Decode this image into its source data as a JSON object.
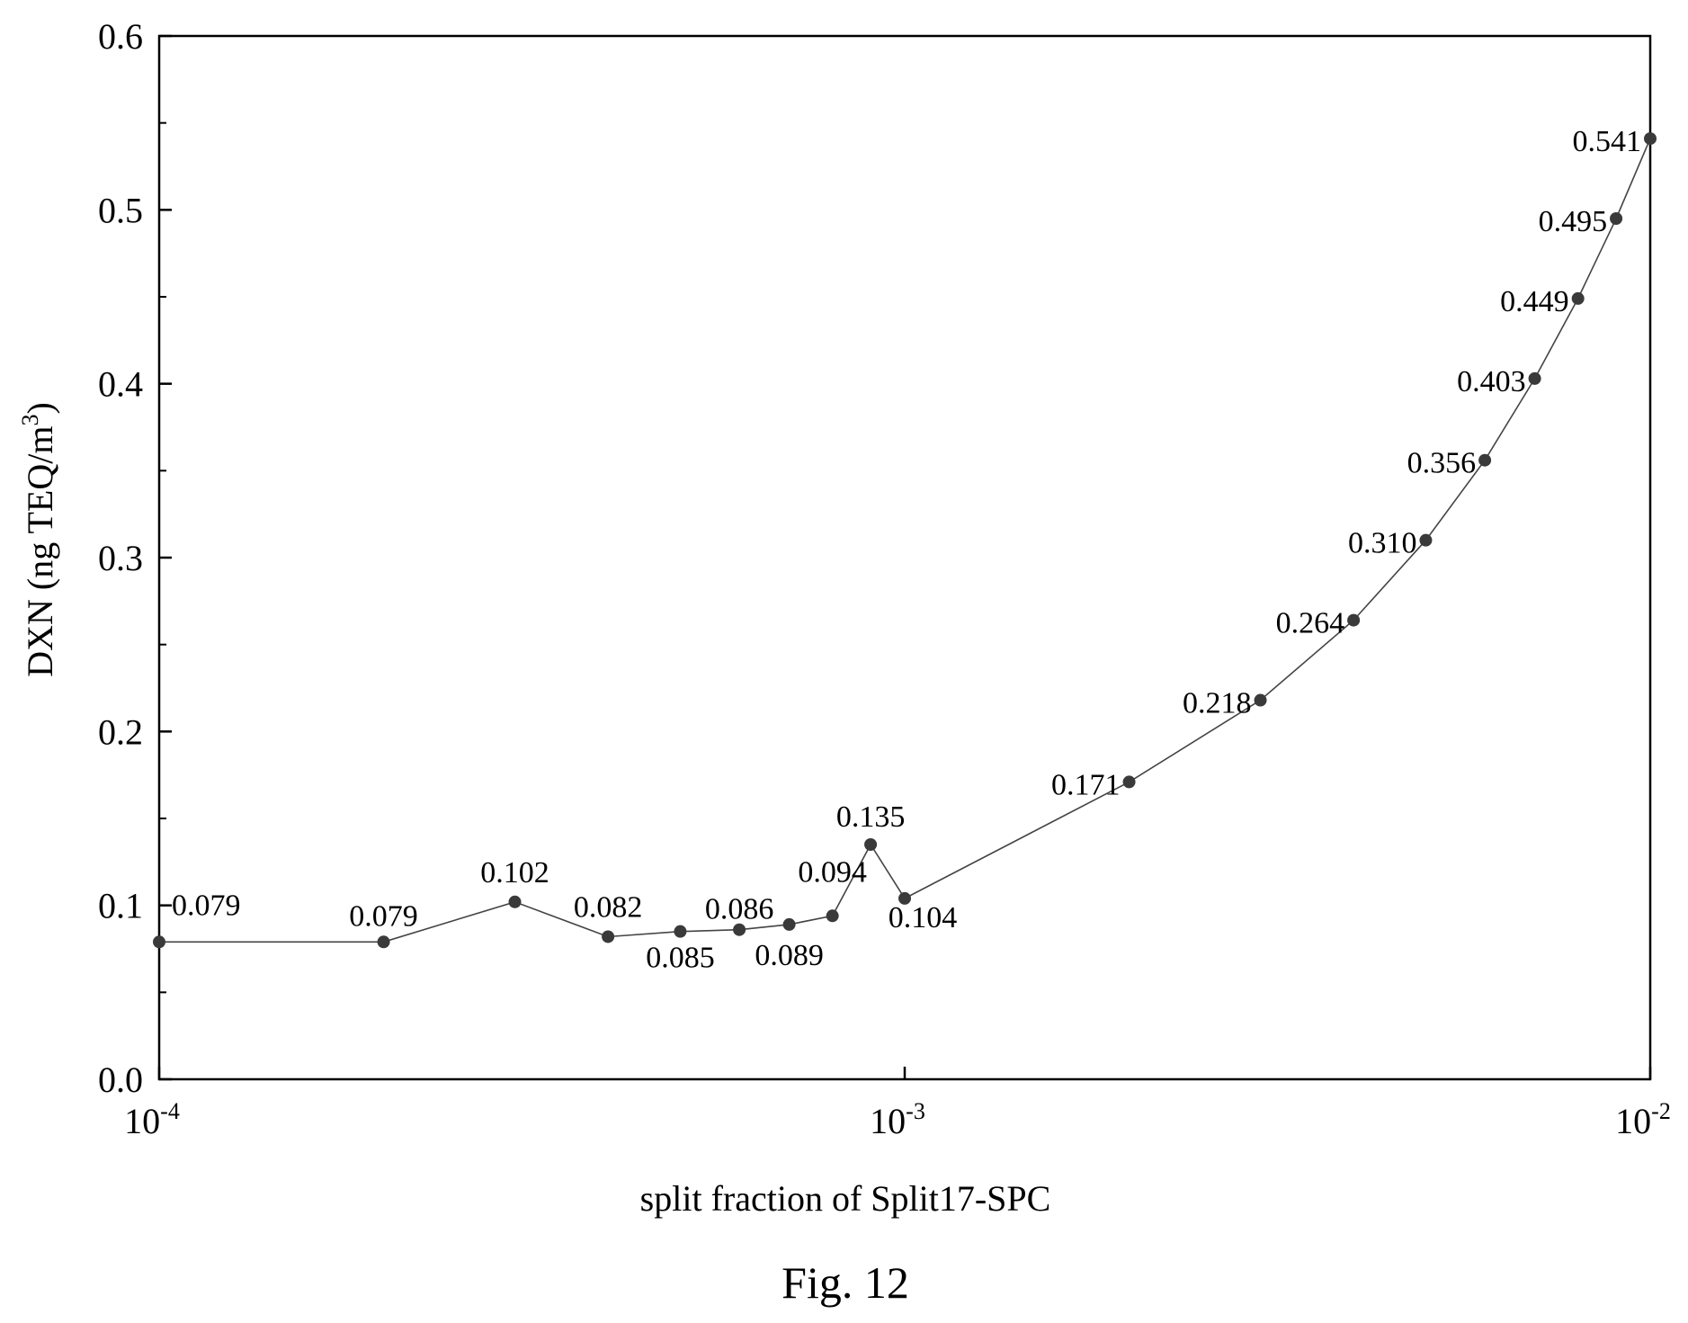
{
  "chart_data": {
    "type": "line",
    "xlabel": "split fraction of Split17-SPC",
    "ylabel": "DXN (ng TEQ/m",
    "ylabel_sup": "3",
    "ylabel_close": ")",
    "x_scale": "log",
    "xlim": [
      0.0001,
      0.01
    ],
    "ylim": [
      0.0,
      0.6
    ],
    "x_ticks": [
      {
        "value": 0.0001,
        "base": "10",
        "exp": "-4"
      },
      {
        "value": 0.001,
        "base": "10",
        "exp": "-3"
      },
      {
        "value": 0.01,
        "base": "10",
        "exp": "-2"
      }
    ],
    "y_ticks": [
      {
        "value": 0.0,
        "label": "0.0"
      },
      {
        "value": 0.1,
        "label": "0.1"
      },
      {
        "value": 0.2,
        "label": "0.2"
      },
      {
        "value": 0.3,
        "label": "0.3"
      },
      {
        "value": 0.4,
        "label": "0.4"
      },
      {
        "value": 0.5,
        "label": "0.5"
      },
      {
        "value": 0.6,
        "label": "0.6"
      }
    ],
    "grid": false,
    "series": [
      {
        "x": [
          0.0001,
          0.0002,
          0.0003,
          0.0004,
          0.0005,
          0.0006,
          0.0007,
          0.0008,
          0.0009,
          0.001,
          0.002,
          0.003,
          0.004,
          0.005,
          0.006,
          0.007,
          0.008,
          0.009,
          0.01
        ],
        "y": [
          0.079,
          0.079,
          0.102,
          0.082,
          0.085,
          0.086,
          0.089,
          0.094,
          0.135,
          0.104,
          0.171,
          0.218,
          0.264,
          0.31,
          0.356,
          0.403,
          0.449,
          0.495,
          0.541
        ],
        "labels": [
          "0.079",
          "0.079",
          "0.102",
          "0.082",
          "0.085",
          "0.086",
          "0.089",
          "0.094",
          "0.135",
          "0.104",
          "0.171",
          "0.218",
          "0.264",
          "0.310",
          "0.356",
          "0.403",
          "0.449",
          "0.495",
          "0.541"
        ]
      }
    ]
  },
  "caption": "Fig. 12"
}
